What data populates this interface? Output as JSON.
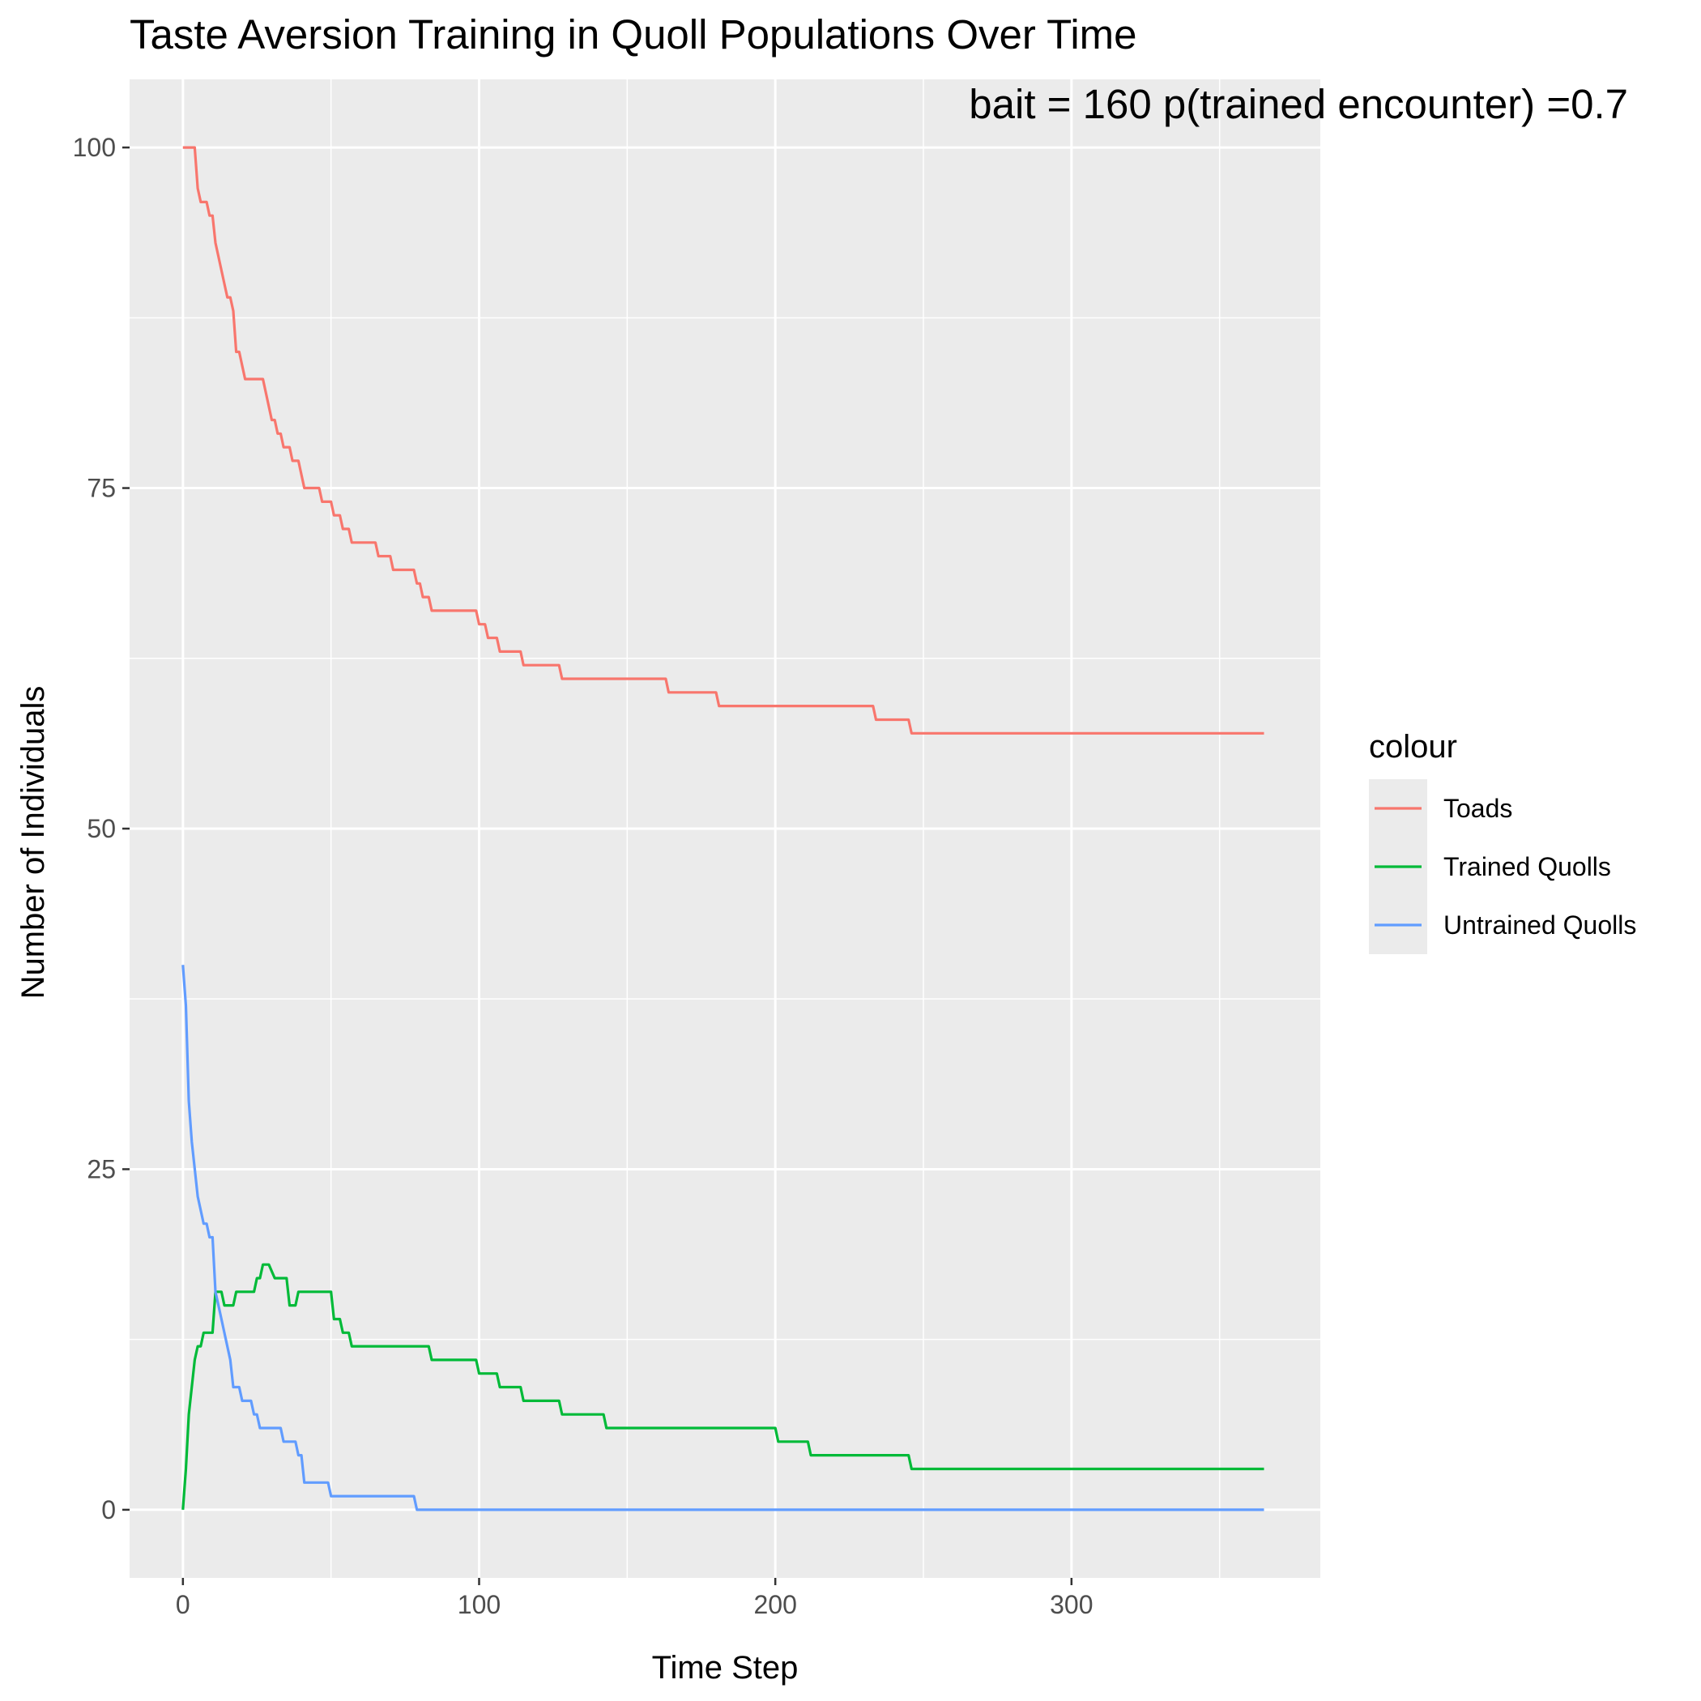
{
  "chart_data": {
    "type": "line",
    "title": "Taste Aversion Training in Quoll Populations Over Time",
    "annotation": "bait = 160  p(trained encounter) =0.7",
    "xlabel": "Time Step",
    "ylabel": "Number of Individuals",
    "xlim": [
      -18,
      384
    ],
    "ylim": [
      -5,
      105
    ],
    "x_ticks": [
      0,
      100,
      200,
      300
    ],
    "y_ticks": [
      0,
      25,
      50,
      75,
      100
    ],
    "grid": true,
    "legend": {
      "title": "colour",
      "position": "right",
      "entries": [
        "Toads",
        "Trained Quolls",
        "Untrained Quolls"
      ]
    },
    "colors": {
      "Toads": "#F8766D",
      "Trained Quolls": "#00BA38",
      "Untrained Quolls": "#619CFF"
    },
    "series": [
      {
        "name": "Toads",
        "points": [
          [
            0,
            100
          ],
          [
            4,
            100
          ],
          [
            5,
            97
          ],
          [
            6,
            96
          ],
          [
            8,
            96
          ],
          [
            9,
            95
          ],
          [
            10,
            95
          ],
          [
            11,
            93
          ],
          [
            14,
            90
          ],
          [
            15,
            89
          ],
          [
            16,
            89
          ],
          [
            17,
            88
          ],
          [
            18,
            85
          ],
          [
            19,
            85
          ],
          [
            21,
            83
          ],
          [
            27,
            83
          ],
          [
            30,
            80
          ],
          [
            31,
            80
          ],
          [
            32,
            79
          ],
          [
            33,
            79
          ],
          [
            34,
            78
          ],
          [
            36,
            78
          ],
          [
            37,
            77
          ],
          [
            39,
            77
          ],
          [
            41,
            75
          ],
          [
            46,
            75
          ],
          [
            47,
            74
          ],
          [
            50,
            74
          ],
          [
            51,
            73
          ],
          [
            53,
            73
          ],
          [
            54,
            72
          ],
          [
            56,
            72
          ],
          [
            57,
            71
          ],
          [
            65,
            71
          ],
          [
            66,
            70
          ],
          [
            70,
            70
          ],
          [
            71,
            69
          ],
          [
            78,
            69
          ],
          [
            79,
            68
          ],
          [
            80,
            68
          ],
          [
            81,
            67
          ],
          [
            83,
            67
          ],
          [
            84,
            66
          ],
          [
            99,
            66
          ],
          [
            100,
            65
          ],
          [
            102,
            65
          ],
          [
            103,
            64
          ],
          [
            106,
            64
          ],
          [
            107,
            63
          ],
          [
            114,
            63
          ],
          [
            115,
            62
          ],
          [
            127,
            62
          ],
          [
            128,
            61
          ],
          [
            163,
            61
          ],
          [
            164,
            60
          ],
          [
            180,
            60
          ],
          [
            181,
            59
          ],
          [
            233,
            59
          ],
          [
            234,
            58
          ],
          [
            245,
            58
          ],
          [
            246,
            57
          ],
          [
            365,
            57
          ]
        ]
      },
      {
        "name": "Trained Quolls",
        "points": [
          [
            0,
            0
          ],
          [
            1,
            3
          ],
          [
            2,
            7
          ],
          [
            4,
            11
          ],
          [
            5,
            12
          ],
          [
            6,
            12
          ],
          [
            7,
            13
          ],
          [
            10,
            13
          ],
          [
            11,
            16
          ],
          [
            13,
            16
          ],
          [
            14,
            15
          ],
          [
            17,
            15
          ],
          [
            18,
            16
          ],
          [
            24,
            16
          ],
          [
            25,
            17
          ],
          [
            26,
            17
          ],
          [
            27,
            18
          ],
          [
            29,
            18
          ],
          [
            31,
            17
          ],
          [
            35,
            17
          ],
          [
            36,
            15
          ],
          [
            38,
            15
          ],
          [
            39,
            16
          ],
          [
            50,
            16
          ],
          [
            51,
            14
          ],
          [
            53,
            14
          ],
          [
            54,
            13
          ],
          [
            56,
            13
          ],
          [
            57,
            12
          ],
          [
            83,
            12
          ],
          [
            84,
            11
          ],
          [
            99,
            11
          ],
          [
            100,
            10
          ],
          [
            106,
            10
          ],
          [
            107,
            9
          ],
          [
            114,
            9
          ],
          [
            115,
            8
          ],
          [
            127,
            8
          ],
          [
            128,
            7
          ],
          [
            142,
            7
          ],
          [
            143,
            6
          ],
          [
            200,
            6
          ],
          [
            201,
            5
          ],
          [
            211,
            5
          ],
          [
            212,
            4
          ],
          [
            245,
            4
          ],
          [
            246,
            3
          ],
          [
            365,
            3
          ]
        ]
      },
      {
        "name": "Untrained Quolls",
        "points": [
          [
            0,
            40
          ],
          [
            1,
            37
          ],
          [
            2,
            30
          ],
          [
            3,
            27
          ],
          [
            5,
            23
          ],
          [
            7,
            21
          ],
          [
            8,
            21
          ],
          [
            9,
            20
          ],
          [
            10,
            20
          ],
          [
            11,
            16
          ],
          [
            12,
            15
          ],
          [
            14,
            13
          ],
          [
            16,
            11
          ],
          [
            17,
            9
          ],
          [
            19,
            9
          ],
          [
            20,
            8
          ],
          [
            23,
            8
          ],
          [
            24,
            7
          ],
          [
            25,
            7
          ],
          [
            26,
            6
          ],
          [
            33,
            6
          ],
          [
            34,
            5
          ],
          [
            38,
            5
          ],
          [
            39,
            4
          ],
          [
            40,
            4
          ],
          [
            41,
            2
          ],
          [
            49,
            2
          ],
          [
            50,
            1
          ],
          [
            78,
            1
          ],
          [
            79,
            0
          ],
          [
            365,
            0
          ]
        ]
      }
    ]
  }
}
